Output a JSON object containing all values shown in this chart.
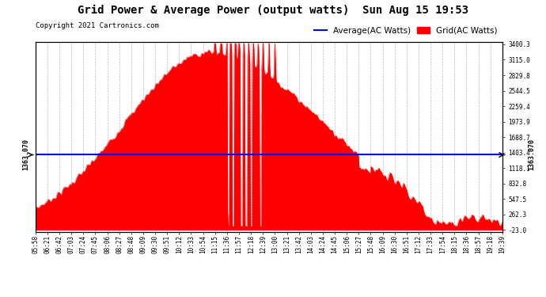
{
  "title": "Grid Power & Average Power (output watts)  Sun Aug 15 19:53",
  "copyright": "Copyright 2021 Cartronics.com",
  "legend_avg": "Average(AC Watts)",
  "legend_grid": "Grid(AC Watts)",
  "avg_value": 1363.07,
  "avg_label": "1363.070",
  "y_min": -23.0,
  "y_max": 3400.3,
  "right_yticks": [
    3400.3,
    3115.0,
    2829.8,
    2544.5,
    2259.4,
    1973.9,
    1688.7,
    1403.4,
    1118.1,
    832.8,
    547.5,
    262.3,
    -23.0
  ],
  "x_labels": [
    "05:58",
    "06:21",
    "06:42",
    "07:03",
    "07:24",
    "07:45",
    "08:06",
    "08:27",
    "08:48",
    "09:09",
    "09:30",
    "09:51",
    "10:12",
    "10:33",
    "10:54",
    "11:15",
    "11:36",
    "11:57",
    "12:18",
    "12:39",
    "13:00",
    "13:21",
    "13:42",
    "14:03",
    "14:24",
    "14:45",
    "15:06",
    "15:27",
    "15:48",
    "16:09",
    "16:30",
    "16:51",
    "17:12",
    "17:33",
    "17:54",
    "18:15",
    "18:36",
    "18:57",
    "19:18",
    "19:39"
  ],
  "fill_color": "#FF0000",
  "line_color": "#0000FF",
  "bg_color": "#FFFFFF",
  "grid_color": "#AAAAAA",
  "title_color": "#000000",
  "copyright_color": "#000000",
  "title_fontsize": 10,
  "copyright_fontsize": 6.5,
  "tick_fontsize": 5.5,
  "legend_fontsize": 7.5
}
